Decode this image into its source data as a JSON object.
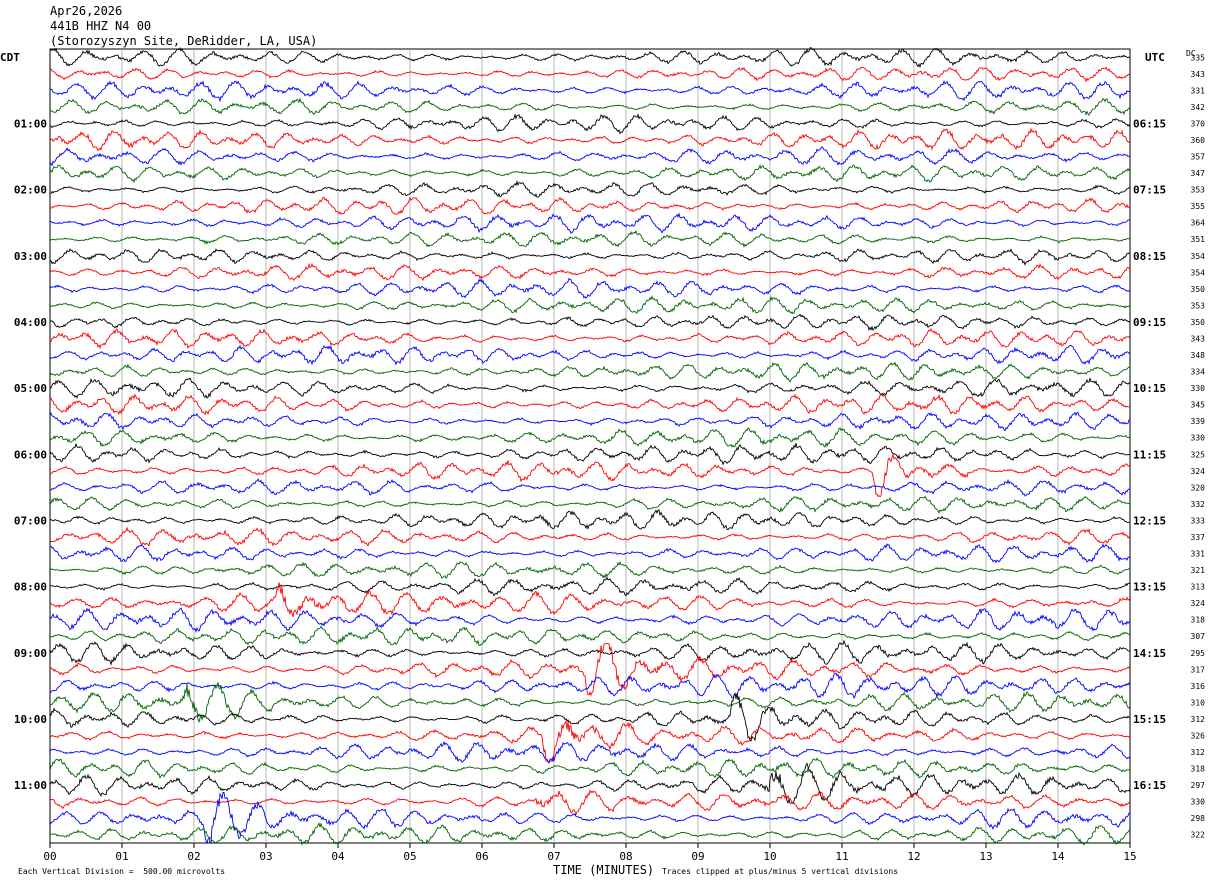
{
  "header": {
    "date": "Apr26,2026",
    "station": "441B HHZ N4 00",
    "site": "(Storozyszyn Site, DeRidder, LA, USA)"
  },
  "left_tz": "CDT",
  "right_tz": "UTC",
  "dc_header": "DC",
  "footer": {
    "division": "Each Vertical Division =  500.00 microvolts",
    "xlabel": "TIME (MINUTES)",
    "clip_note": "Traces clipped at plus/minus 5 vertical divisions"
  },
  "colors": {
    "trace_cycle": [
      "#000000",
      "#ff0000",
      "#0000ff",
      "#006400"
    ],
    "grid": "#888888"
  },
  "chart_data": {
    "type": "line",
    "title": "",
    "xlabel": "TIME (MINUTES)",
    "xlim": [
      0,
      15
    ],
    "x_ticks": [
      "00",
      "01",
      "02",
      "03",
      "04",
      "05",
      "06",
      "07",
      "08",
      "09",
      "10",
      "11",
      "12",
      "13",
      "14",
      "15"
    ],
    "left_hour_labels": [
      "01:00",
      "02:00",
      "03:00",
      "04:00",
      "05:00",
      "06:00",
      "07:00",
      "08:00",
      "09:00",
      "10:00",
      "11:00"
    ],
    "right_hour_labels": [
      "06:15",
      "07:15",
      "08:15",
      "09:15",
      "10:15",
      "11:15",
      "12:15",
      "13:15",
      "14:15",
      "15:15",
      "16:15"
    ],
    "traces_per_hour": 4,
    "dc_values": [
      335,
      343,
      331,
      342,
      370,
      360,
      357,
      347,
      353,
      355,
      364,
      351,
      354,
      354,
      350,
      353,
      350,
      343,
      348,
      334,
      330,
      345,
      339,
      330,
      325,
      324,
      320,
      332,
      333,
      337,
      331,
      321,
      313,
      324,
      318,
      307,
      295,
      317,
      316,
      310,
      312,
      326,
      312,
      318,
      297,
      330,
      298,
      322
    ],
    "events": [
      {
        "trace": 25,
        "minute": 11.5,
        "amp": 2.2
      },
      {
        "trace": 33,
        "minute": 3.2,
        "amp": 1.6
      },
      {
        "trace": 37,
        "minute": 7.5,
        "amp": 2.4
      },
      {
        "trace": 39,
        "minute": 1.9,
        "amp": 1.8
      },
      {
        "trace": 40,
        "minute": 9.5,
        "amp": 1.6
      },
      {
        "trace": 41,
        "minute": 6.9,
        "amp": 2.6
      },
      {
        "trace": 44,
        "minute": 10.0,
        "amp": 2.2
      },
      {
        "trace": 45,
        "minute": 6.8,
        "amp": 1.4
      },
      {
        "trace": 46,
        "minute": 2.2,
        "amp": 1.8
      }
    ]
  }
}
